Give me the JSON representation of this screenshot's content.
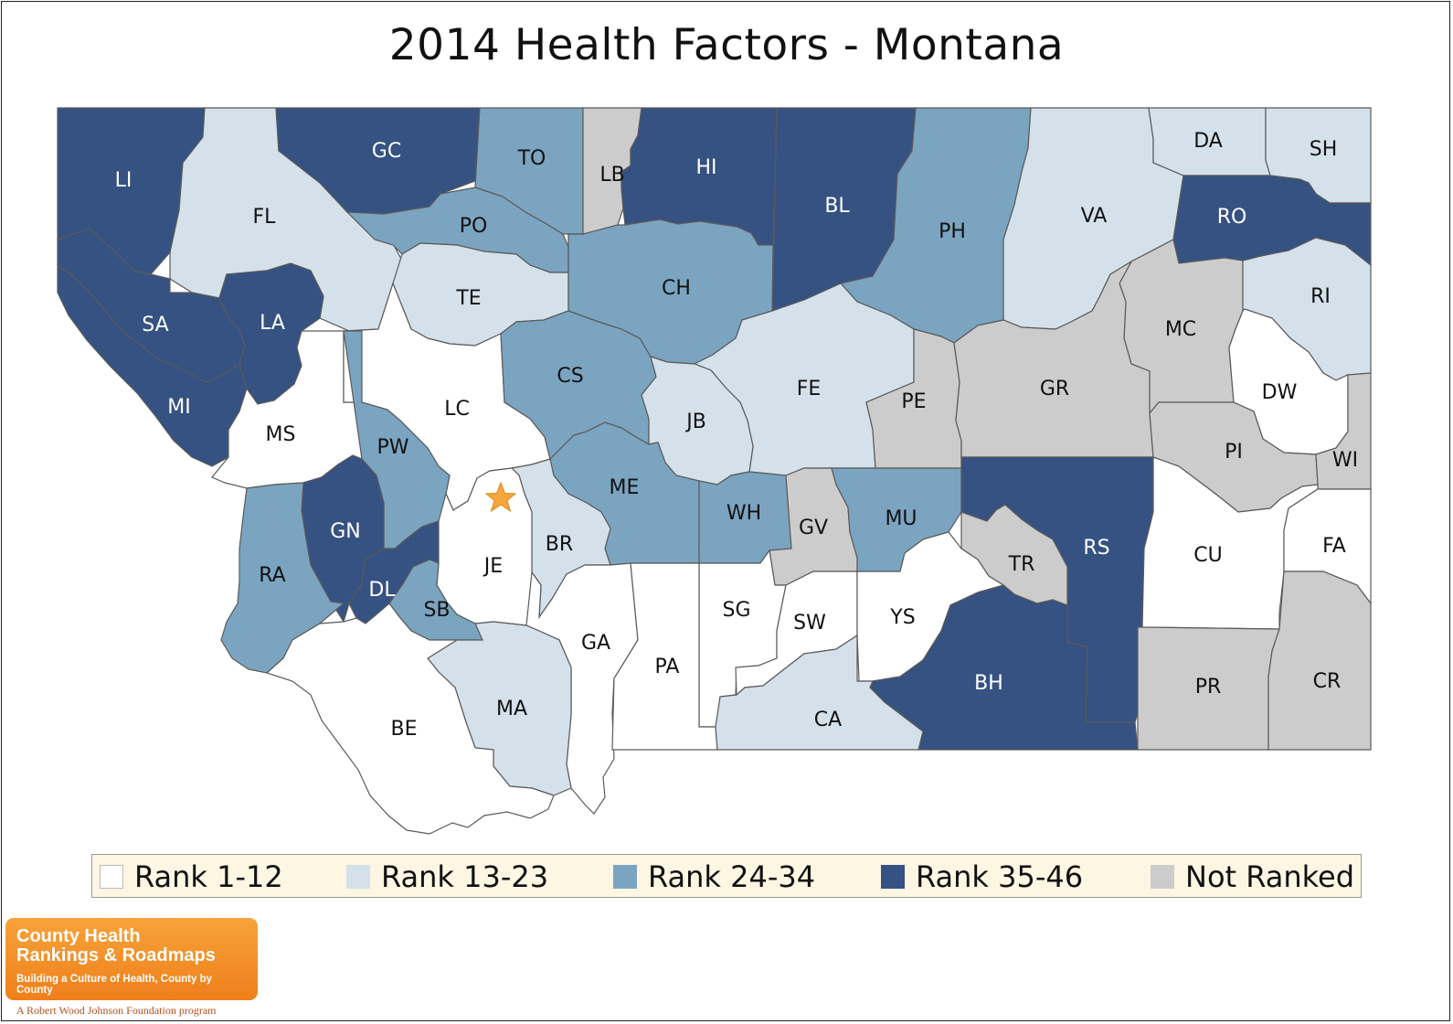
{
  "title": "2014 Health Factors - Montana",
  "colors": {
    "rank_1_12": "#ffffff",
    "rank_13_23": "#d4e1ea",
    "rank_24_34": "#7ba4c1",
    "rank_35_46": "#355282",
    "not_ranked": "#cccccc",
    "capital_star": "#f4a638",
    "legend_bg": "#fdf6e3"
  },
  "legend": [
    {
      "key": "rank_1_12",
      "label": "Rank 1-12"
    },
    {
      "key": "rank_13_23",
      "label": "Rank 13-23"
    },
    {
      "key": "rank_24_34",
      "label": "Rank 24-34"
    },
    {
      "key": "rank_35_46",
      "label": "Rank 35-46"
    },
    {
      "key": "not_ranked",
      "label": "Not Ranked"
    }
  ],
  "capital_marker": "star-icon",
  "counties": [
    {
      "code": "LI",
      "group": "rank_35_46"
    },
    {
      "code": "FL",
      "group": "rank_13_23"
    },
    {
      "code": "GC",
      "group": "rank_35_46"
    },
    {
      "code": "TO",
      "group": "rank_24_34"
    },
    {
      "code": "LB",
      "group": "not_ranked"
    },
    {
      "code": "HI",
      "group": "rank_35_46"
    },
    {
      "code": "BL",
      "group": "rank_35_46"
    },
    {
      "code": "PH",
      "group": "rank_24_34"
    },
    {
      "code": "VA",
      "group": "rank_13_23"
    },
    {
      "code": "DA",
      "group": "rank_13_23"
    },
    {
      "code": "SH",
      "group": "rank_13_23"
    },
    {
      "code": "RO",
      "group": "rank_35_46"
    },
    {
      "code": "PO",
      "group": "rank_24_34"
    },
    {
      "code": "SA",
      "group": "rank_35_46"
    },
    {
      "code": "LA",
      "group": "rank_35_46"
    },
    {
      "code": "TE",
      "group": "rank_13_23"
    },
    {
      "code": "CH",
      "group": "rank_24_34"
    },
    {
      "code": "MC",
      "group": "not_ranked"
    },
    {
      "code": "RI",
      "group": "rank_13_23"
    },
    {
      "code": "MI",
      "group": "rank_35_46"
    },
    {
      "code": "MS",
      "group": "rank_1_12"
    },
    {
      "code": "LC",
      "group": "rank_1_12"
    },
    {
      "code": "CS",
      "group": "rank_24_34"
    },
    {
      "code": "FE",
      "group": "rank_13_23"
    },
    {
      "code": "PE",
      "group": "not_ranked"
    },
    {
      "code": "GR",
      "group": "not_ranked"
    },
    {
      "code": "DW",
      "group": "rank_1_12"
    },
    {
      "code": "JB",
      "group": "rank_13_23"
    },
    {
      "code": "PW",
      "group": "rank_24_34"
    },
    {
      "code": "PI",
      "group": "not_ranked"
    },
    {
      "code": "WI",
      "group": "not_ranked"
    },
    {
      "code": "ME",
      "group": "rank_24_34"
    },
    {
      "code": "WH",
      "group": "rank_24_34"
    },
    {
      "code": "GV",
      "group": "not_ranked"
    },
    {
      "code": "MU",
      "group": "rank_24_34"
    },
    {
      "code": "GN",
      "group": "rank_35_46"
    },
    {
      "code": "RA",
      "group": "rank_24_34"
    },
    {
      "code": "BR",
      "group": "rank_13_23"
    },
    {
      "code": "JE",
      "group": "rank_1_12"
    },
    {
      "code": "RS",
      "group": "rank_35_46"
    },
    {
      "code": "CU",
      "group": "rank_1_12"
    },
    {
      "code": "FA",
      "group": "rank_1_12"
    },
    {
      "code": "TR",
      "group": "not_ranked"
    },
    {
      "code": "DL",
      "group": "rank_35_46"
    },
    {
      "code": "SB",
      "group": "rank_24_34"
    },
    {
      "code": "SG",
      "group": "rank_1_12"
    },
    {
      "code": "SW",
      "group": "rank_1_12"
    },
    {
      "code": "YS",
      "group": "rank_1_12"
    },
    {
      "code": "GA",
      "group": "rank_1_12"
    },
    {
      "code": "PA",
      "group": "rank_1_12"
    },
    {
      "code": "MA",
      "group": "rank_13_23"
    },
    {
      "code": "BH",
      "group": "rank_35_46"
    },
    {
      "code": "PR",
      "group": "not_ranked"
    },
    {
      "code": "CR",
      "group": "not_ranked"
    },
    {
      "code": "CA",
      "group": "rank_13_23"
    },
    {
      "code": "BE",
      "group": "rank_1_12"
    }
  ],
  "logo": {
    "line1": "County Health",
    "line2": "Rankings & Roadmaps",
    "tagline": "Building a Culture of Health, County by County",
    "sponsor": "A Robert Wood Johnson Foundation program"
  }
}
